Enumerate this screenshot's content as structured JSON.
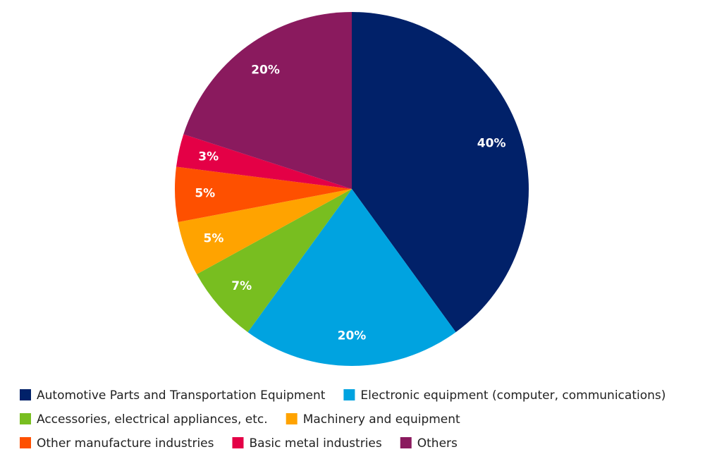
{
  "chart_data": {
    "type": "pie",
    "categories": [
      "Automotive Parts and Transportation Equipment",
      "Electronic equipment (computer, communications)",
      "Accessories, electrical appliances, etc.",
      "Machinery and equipment",
      "Other manufacture industries",
      "Basic metal industries",
      "Others"
    ],
    "values": [
      40,
      20,
      7,
      5,
      5,
      3,
      20
    ],
    "value_labels": [
      "40%",
      "20%",
      "7%",
      "5%",
      "5%",
      "3%",
      "20%"
    ],
    "colors": [
      "#012169",
      "#00a3e0",
      "#78be20",
      "#ffa300",
      "#fe5000",
      "#e40046",
      "#8a1a5e"
    ],
    "legend": "bottom"
  }
}
